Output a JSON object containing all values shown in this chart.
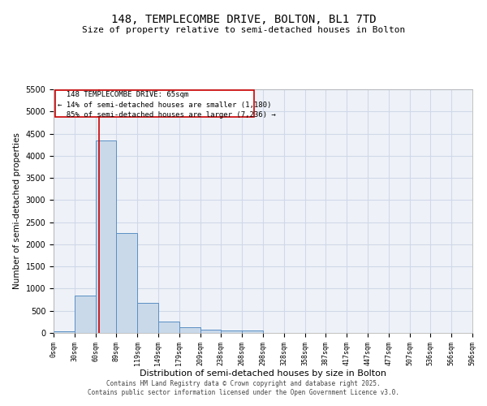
{
  "title": "148, TEMPLECOMBE DRIVE, BOLTON, BL1 7TD",
  "subtitle": "Size of property relative to semi-detached houses in Bolton",
  "xlabel": "Distribution of semi-detached houses by size in Bolton",
  "ylabel": "Number of semi-detached properties",
  "bin_edges": [
    0,
    30,
    60,
    89,
    119,
    149,
    179,
    209,
    238,
    268,
    298,
    328,
    358,
    387,
    417,
    447,
    477,
    507,
    536,
    566,
    596
  ],
  "bar_heights": [
    30,
    850,
    4350,
    2250,
    680,
    250,
    120,
    75,
    60,
    60,
    0,
    0,
    0,
    0,
    0,
    0,
    0,
    0,
    0,
    0
  ],
  "bar_color": "#c9d9ea",
  "bar_edge_color": "#5a8fc3",
  "property_size": 65,
  "property_label": "148 TEMPLECOMBE DRIVE: 65sqm",
  "smaller_pct": "14%",
  "smaller_count": "1,180",
  "larger_pct": "85%",
  "larger_count": "7,236",
  "red_line_color": "#cc0000",
  "annotation_box_color": "#cc0000",
  "ylim": [
    0,
    5500
  ],
  "yticks": [
    0,
    500,
    1000,
    1500,
    2000,
    2500,
    3000,
    3500,
    4000,
    4500,
    5000,
    5500
  ],
  "grid_color": "#d0d8e8",
  "bg_color": "#eef2f8",
  "footer1": "Contains HM Land Registry data © Crown copyright and database right 2025.",
  "footer2": "Contains public sector information licensed under the Open Government Licence v3.0."
}
